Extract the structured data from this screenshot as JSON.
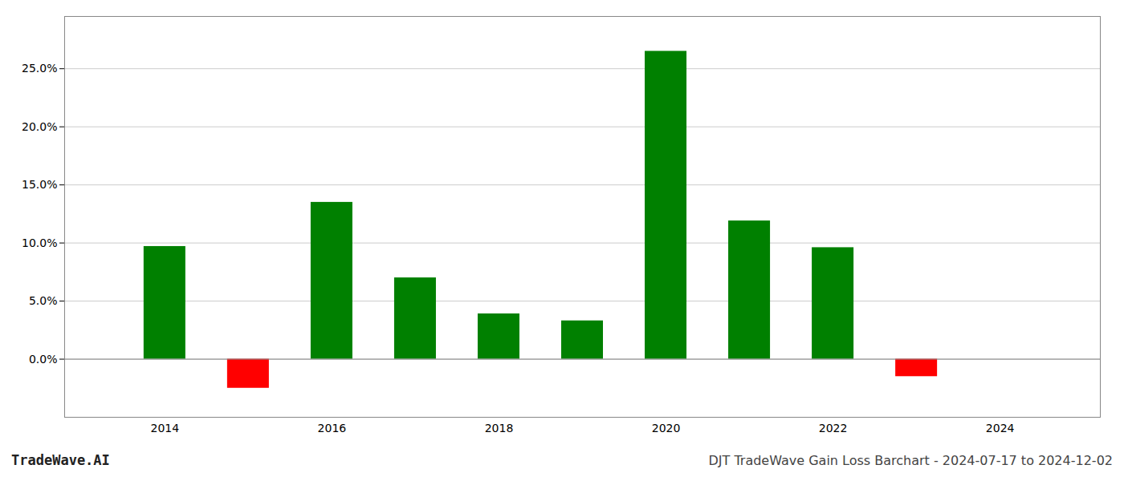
{
  "chart_data": {
    "type": "bar",
    "title": "DJT TradeWave Gain Loss Barchart - 2024-07-17 to 2024-12-02",
    "annotations": [
      "TradeWave.AI"
    ],
    "x": [
      2014,
      2015,
      2016,
      2017,
      2018,
      2019,
      2020,
      2021,
      2022,
      2023
    ],
    "values": [
      0.097,
      -0.025,
      0.135,
      0.07,
      0.039,
      0.033,
      0.265,
      0.119,
      0.096,
      -0.015
    ],
    "colors": [
      "#008000",
      "#ff0000",
      "#008000",
      "#008000",
      "#008000",
      "#008000",
      "#008000",
      "#008000",
      "#008000",
      "#ff0000"
    ],
    "xlim": [
      2012.8,
      2025.2
    ],
    "xticks": [
      2014,
      2016,
      2018,
      2020,
      2022,
      2024
    ],
    "ylim": [
      -0.05,
      0.295
    ],
    "yticks": [
      {
        "value": 0.0,
        "label": "0.0%"
      },
      {
        "value": 0.05,
        "label": "5.0%"
      },
      {
        "value": 0.1,
        "label": "10.0%"
      },
      {
        "value": 0.15,
        "label": "15.0%"
      },
      {
        "value": 0.2,
        "label": "20.0%"
      },
      {
        "value": 0.25,
        "label": "25.0%"
      }
    ],
    "grid": true
  }
}
